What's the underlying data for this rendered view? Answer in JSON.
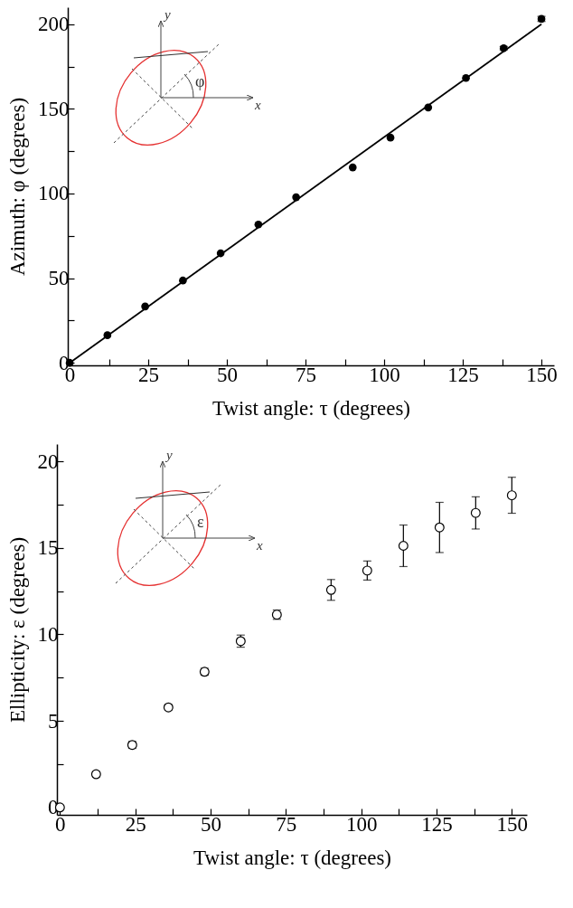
{
  "chart_data": [
    {
      "type": "scatter",
      "xlabel": "Twist angle: τ (degrees)",
      "ylabel": "Azimuth: φ (degrees)",
      "annotations": [
        "y",
        "x",
        "φ"
      ],
      "xlim": [
        -0.6,
        154
      ],
      "ylim": [
        -1.5,
        210
      ],
      "xticks": [
        0,
        {
          "value": 12.5,
          "label": null
        },
        25,
        {
          "value": 37.5,
          "label": null
        },
        50,
        {
          "value": 62.5,
          "label": null
        },
        75,
        {
          "value": 87.5,
          "label": null
        },
        100,
        {
          "value": 112.5,
          "label": null
        },
        125,
        {
          "value": 137.5,
          "label": null
        },
        150
      ],
      "yticks": [
        0,
        {
          "value": 25,
          "label": null
        },
        50,
        {
          "value": 75,
          "label": null
        },
        100,
        {
          "value": 125,
          "label": null
        },
        150,
        {
          "value": 175,
          "label": null
        },
        200
      ],
      "grid": false,
      "series": [
        {
          "color": "#000000",
          "marker": "circle",
          "x": [
            0,
            12,
            24,
            36,
            48,
            60,
            72,
            90,
            102,
            114,
            126,
            138,
            150
          ],
          "values": [
            0,
            16.3,
            33.3,
            48.6,
            64.7,
            81.7,
            97.8,
            115.4,
            133,
            150.8,
            168.2,
            185.8,
            203.1
          ],
          "errors": [
            null,
            null,
            null,
            null,
            null,
            null,
            null,
            null,
            null,
            null,
            null,
            1,
            1.5
          ]
        },
        {
          "type": "line",
          "color": "#000000",
          "x": [
            0,
            150
          ],
          "values": [
            0,
            200
          ],
          "line_style": "solid"
        }
      ]
    },
    {
      "type": "scatter",
      "xlabel": "Twist angle: τ (degrees)",
      "ylabel": "Ellipticity: ε (degrees)",
      "annotations": [
        "y",
        "x",
        "ε"
      ],
      "xlim": [
        -1,
        155
      ],
      "ylim": [
        -0.43,
        21
      ],
      "xticks": [
        0,
        {
          "value": 12.5,
          "label": null
        },
        25,
        {
          "value": 37.5,
          "label": null
        },
        50,
        {
          "value": 62.5,
          "label": null
        },
        75,
        {
          "value": 87.5,
          "label": null
        },
        100,
        {
          "value": 112.5,
          "label": null
        },
        125,
        {
          "value": 137.5,
          "label": null
        },
        150
      ],
      "yticks": [
        0,
        {
          "value": 2.5,
          "label": null
        },
        5,
        {
          "value": 7.5,
          "label": null
        },
        10,
        {
          "value": 12.5,
          "label": null
        },
        15,
        {
          "value": 17.5,
          "label": null
        },
        20
      ],
      "grid": false,
      "marker": "circle",
      "series": [
        {
          "color": "#000000",
          "x": [
            0,
            12,
            24,
            36,
            48,
            60,
            72,
            90,
            102,
            114,
            126,
            138,
            150
          ],
          "values": [
            0,
            1.92,
            3.61,
            5.78,
            7.84,
            9.61,
            11.14,
            12.57,
            13.69,
            15.12,
            16.18,
            17.02,
            18.04
          ],
          "errors": [
            null,
            0.15,
            0.2,
            0.15,
            0.2,
            0.35,
            0.27,
            0.6,
            0.55,
            1.2,
            1.45,
            0.93,
            1.04
          ]
        }
      ]
    }
  ]
}
